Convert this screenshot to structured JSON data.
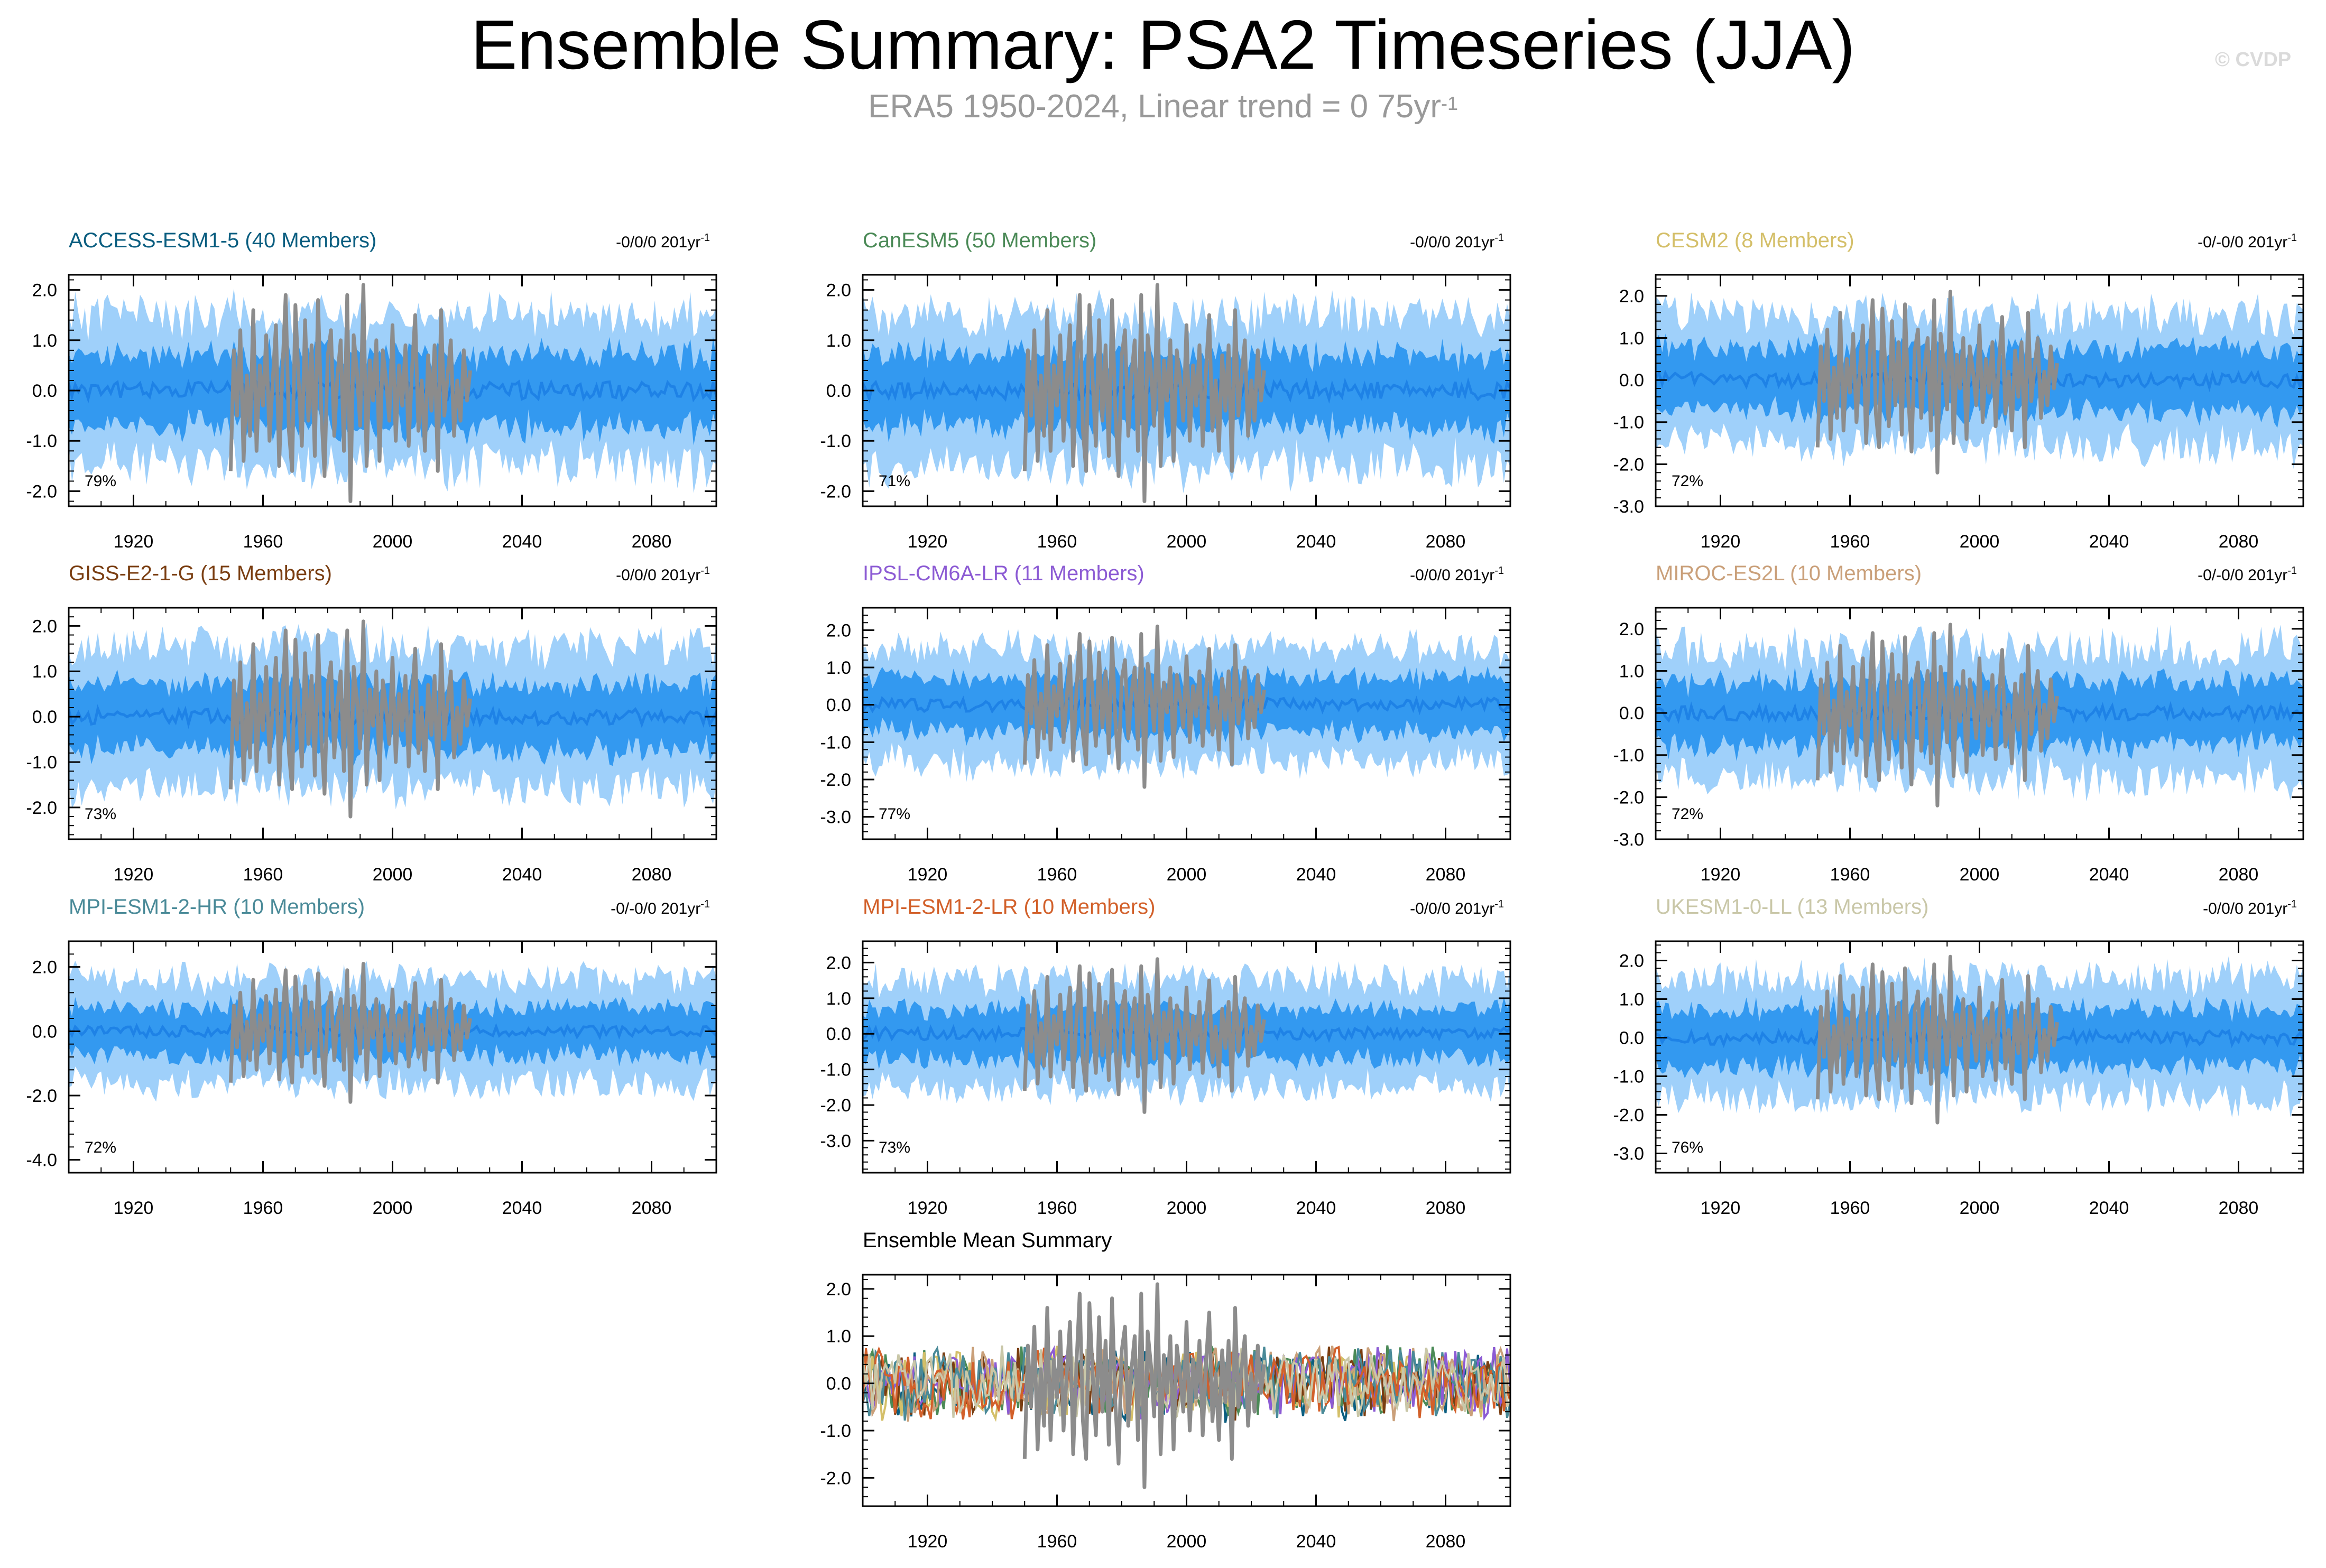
{
  "title": "Ensemble Summary: PSA2 Timeseries (JJA)",
  "subtitle": {
    "text": "ERA5 1950-2024, Linear trend = 0 75yr",
    "superscript": "-1"
  },
  "watermark": "© CVDP",
  "colors": {
    "band_outer": "#9fd0fa",
    "band_inner": "#3399f0",
    "ens_mean": "#1e82e6",
    "observed": "#8c8c8c",
    "axis": "#000000"
  },
  "chart_data": [
    {
      "type": "line",
      "title": "ACCESS-ESM1-5 (40 Members)",
      "title_color": "#0b5e80",
      "trend_label": "-0/0/0 201yr",
      "trend_sup": "-1",
      "percent_label": "79%",
      "xlim": [
        1900,
        2100
      ],
      "ylim": [
        -2.3,
        2.3
      ],
      "yticks": [
        2.0,
        1.0,
        0.0,
        -1.0,
        -2.0
      ],
      "ytick_labels": [
        "2.0",
        "1.0",
        "0.0",
        "-1.0",
        "-2.0"
      ],
      "xticks": [
        1920,
        1960,
        2000,
        2040,
        2080
      ],
      "xtick_labels": [
        "1920",
        "1960",
        "2000",
        "2040",
        "2080"
      ],
      "outer_amp": 1.45,
      "inner_amp": 0.72,
      "seed": 11
    },
    {
      "type": "line",
      "title": "CanESM5 (50 Members)",
      "title_color": "#4b8a57",
      "trend_label": "-0/0/0 201yr",
      "trend_sup": "-1",
      "percent_label": "71%",
      "xlim": [
        1900,
        2100
      ],
      "ylim": [
        -2.3,
        2.3
      ],
      "yticks": [
        2.0,
        1.0,
        0.0,
        -1.0,
        -2.0
      ],
      "ytick_labels": [
        "2.0",
        "1.0",
        "0.0",
        "-1.0",
        "-2.0"
      ],
      "xticks": [
        1920,
        1960,
        2000,
        2040,
        2080
      ],
      "xtick_labels": [
        "1920",
        "1960",
        "2000",
        "2040",
        "2080"
      ],
      "outer_amp": 1.45,
      "inner_amp": 0.72,
      "seed": 23
    },
    {
      "type": "line",
      "title": "CESM2 (8 Members)",
      "title_color": "#d4bf69",
      "trend_label": "-0/-0/0 201yr",
      "trend_sup": "-1",
      "percent_label": "72%",
      "xlim": [
        1900,
        2100
      ],
      "ylim": [
        -3.0,
        2.5
      ],
      "yticks": [
        2.0,
        1.0,
        0.0,
        -1.0,
        -2.0,
        -3.0
      ],
      "ytick_labels": [
        "2.0",
        "1.0",
        "0.0",
        "-1.0",
        "-2.0",
        "-3.0"
      ],
      "xticks": [
        1920,
        1960,
        2000,
        2040,
        2080
      ],
      "xtick_labels": [
        "1920",
        "1960",
        "2000",
        "2040",
        "2080"
      ],
      "outer_amp": 1.5,
      "inner_amp": 0.75,
      "seed": 37
    },
    {
      "type": "line",
      "title": "GISS-E2-1-G (15 Members)",
      "title_color": "#7a3e12",
      "trend_label": "-0/0/0 201yr",
      "trend_sup": "-1",
      "percent_label": "73%",
      "xlim": [
        1900,
        2100
      ],
      "ylim": [
        -2.7,
        2.4
      ],
      "yticks": [
        2.0,
        1.0,
        0.0,
        -1.0,
        -2.0
      ],
      "ytick_labels": [
        "2.0",
        "1.0",
        "0.0",
        "-1.0",
        "-2.0"
      ],
      "xticks": [
        1920,
        1960,
        2000,
        2040,
        2080
      ],
      "xtick_labels": [
        "1920",
        "1960",
        "2000",
        "2040",
        "2080"
      ],
      "outer_amp": 1.5,
      "inner_amp": 0.72,
      "seed": 41
    },
    {
      "type": "line",
      "title": "IPSL-CM6A-LR (11 Members)",
      "title_color": "#8c5bd4",
      "trend_label": "-0/0/0 201yr",
      "trend_sup": "-1",
      "percent_label": "77%",
      "xlim": [
        1900,
        2100
      ],
      "ylim": [
        -3.6,
        2.6
      ],
      "yticks": [
        2.0,
        1.0,
        0.0,
        -1.0,
        -2.0,
        -3.0
      ],
      "ytick_labels": [
        "2.0",
        "1.0",
        "0.0",
        "-1.0",
        "-2.0",
        "-3.0"
      ],
      "xticks": [
        1920,
        1960,
        2000,
        2040,
        2080
      ],
      "xtick_labels": [
        "1920",
        "1960",
        "2000",
        "2040",
        "2080"
      ],
      "outer_amp": 1.5,
      "inner_amp": 0.72,
      "seed": 53
    },
    {
      "type": "line",
      "title": "MIROC-ES2L (10 Members)",
      "title_color": "#caa07a",
      "trend_label": "-0/-0/0 201yr",
      "trend_sup": "-1",
      "percent_label": "72%",
      "xlim": [
        1900,
        2100
      ],
      "ylim": [
        -3.0,
        2.5
      ],
      "yticks": [
        2.0,
        1.0,
        0.0,
        -1.0,
        -2.0,
        -3.0
      ],
      "ytick_labels": [
        "2.0",
        "1.0",
        "0.0",
        "-1.0",
        "-2.0",
        "-3.0"
      ],
      "xticks": [
        1920,
        1960,
        2000,
        2040,
        2080
      ],
      "xtick_labels": [
        "1920",
        "1960",
        "2000",
        "2040",
        "2080"
      ],
      "outer_amp": 1.5,
      "inner_amp": 0.75,
      "seed": 67
    },
    {
      "type": "line",
      "title": "MPI-ESM1-2-HR (10 Members)",
      "title_color": "#4a8a98",
      "trend_label": "-0/-0/0 201yr",
      "trend_sup": "-1",
      "percent_label": "72%",
      "xlim": [
        1900,
        2100
      ],
      "ylim": [
        -4.4,
        2.8
      ],
      "yticks": [
        2.0,
        0.0,
        -2.0,
        -4.0
      ],
      "ytick_labels": [
        "2.0",
        "0.0",
        "-2.0",
        "-4.0"
      ],
      "xticks": [
        1920,
        1960,
        2000,
        2040,
        2080
      ],
      "xtick_labels": [
        "1920",
        "1960",
        "2000",
        "2040",
        "2080"
      ],
      "outer_amp": 1.6,
      "inner_amp": 0.75,
      "seed": 79
    },
    {
      "type": "line",
      "title": "MPI-ESM1-2-LR (10 Members)",
      "title_color": "#d2602a",
      "trend_label": "-0/0/0 201yr",
      "trend_sup": "-1",
      "percent_label": "73%",
      "xlim": [
        1900,
        2100
      ],
      "ylim": [
        -3.9,
        2.6
      ],
      "yticks": [
        2.0,
        1.0,
        0.0,
        -1.0,
        -2.0,
        -3.0
      ],
      "ytick_labels": [
        "2.0",
        "1.0",
        "0.0",
        "-1.0",
        "-2.0",
        "-3.0"
      ],
      "xticks": [
        1920,
        1960,
        2000,
        2040,
        2080
      ],
      "xtick_labels": [
        "1920",
        "1960",
        "2000",
        "2040",
        "2080"
      ],
      "outer_amp": 1.5,
      "inner_amp": 0.72,
      "seed": 83
    },
    {
      "type": "line",
      "title": "UKESM1-0-LL (13 Members)",
      "title_color": "#c9c7a8",
      "trend_label": "-0/0/0 201yr",
      "trend_sup": "-1",
      "percent_label": "76%",
      "xlim": [
        1900,
        2100
      ],
      "ylim": [
        -3.5,
        2.5
      ],
      "yticks": [
        2.0,
        1.0,
        0.0,
        -1.0,
        -2.0,
        -3.0
      ],
      "ytick_labels": [
        "2.0",
        "1.0",
        "0.0",
        "-1.0",
        "-2.0",
        "-3.0"
      ],
      "xticks": [
        1920,
        1960,
        2000,
        2040,
        2080
      ],
      "xtick_labels": [
        "1920",
        "1960",
        "2000",
        "2040",
        "2080"
      ],
      "outer_amp": 1.5,
      "inner_amp": 0.75,
      "seed": 97
    },
    {
      "type": "line",
      "title": "Ensemble Mean Summary",
      "title_color": "#000000",
      "xlim": [
        1900,
        2100
      ],
      "ylim": [
        -2.6,
        2.3
      ],
      "yticks": [
        2.0,
        1.0,
        0.0,
        -1.0,
        -2.0
      ],
      "ytick_labels": [
        "2.0",
        "1.0",
        "0.0",
        "-1.0",
        "-2.0"
      ],
      "xticks": [
        1920,
        1960,
        2000,
        2040,
        2080
      ],
      "xtick_labels": [
        "1920",
        "1960",
        "2000",
        "2040",
        "2080"
      ],
      "series_colors": [
        "#0b5e80",
        "#4b8a57",
        "#d4bf69",
        "#7a3e12",
        "#8c5bd4",
        "#caa07a",
        "#4a8a98",
        "#d2602a",
        "#c9c7a8"
      ],
      "seed": 101
    }
  ],
  "observed": {
    "name": "ERA5",
    "years": [
      1950,
      1951,
      1952,
      1953,
      1954,
      1955,
      1956,
      1957,
      1958,
      1959,
      1960,
      1961,
      1962,
      1963,
      1964,
      1965,
      1966,
      1967,
      1968,
      1969,
      1970,
      1971,
      1972,
      1973,
      1974,
      1975,
      1976,
      1977,
      1978,
      1979,
      1980,
      1981,
      1982,
      1983,
      1984,
      1985,
      1986,
      1987,
      1988,
      1989,
      1990,
      1991,
      1992,
      1993,
      1994,
      1995,
      1996,
      1997,
      1998,
      1999,
      2000,
      2001,
      2002,
      2003,
      2004,
      2005,
      2006,
      2007,
      2008,
      2009,
      2010,
      2011,
      2012,
      2013,
      2014,
      2015,
      2016,
      2017,
      2018,
      2019,
      2020,
      2021,
      2022,
      2023,
      2024
    ],
    "values": [
      -1.6,
      0.8,
      -0.5,
      1.2,
      -1.4,
      0.3,
      -0.9,
      1.6,
      -1.2,
      0.5,
      -0.3,
      1.1,
      -1.0,
      0.2,
      1.3,
      -1.5,
      0.4,
      1.9,
      -0.8,
      -1.6,
      1.7,
      0.2,
      -1.1,
      1.4,
      -0.6,
      0.9,
      -1.3,
      1.8,
      -0.4,
      -1.7,
      0.7,
      1.2,
      -0.9,
      0.3,
      1.0,
      -1.2,
      1.9,
      -2.2,
      1.1,
      0.4,
      -0.7,
      2.1,
      -1.5,
      0.6,
      -0.2,
      1.0,
      -1.4,
      0.8,
      0.2,
      -0.6,
      1.3,
      -1.0,
      0.5,
      -0.3,
      0.9,
      -1.1,
      0.4,
      1.5,
      -0.8,
      0.2,
      -1.2,
      0.7,
      -0.4,
      0.9,
      -1.6,
      1.6,
      -0.5,
      0.3,
      1.0,
      -0.9,
      0.2,
      -0.6,
      0.8,
      -0.2,
      0.4
    ]
  }
}
